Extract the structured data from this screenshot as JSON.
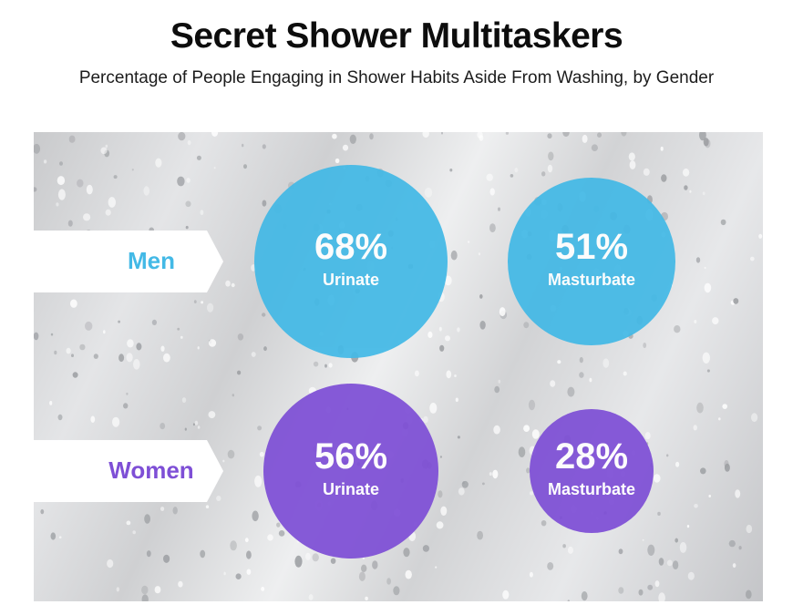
{
  "colors": {
    "men": "#43b9e6",
    "women": "#7e4fd6",
    "tab": "#ffffff"
  },
  "chart_data": {
    "type": "bubble",
    "title": "Secret Shower Multitaskers",
    "subtitle": "Percentage of People Engaging in Shower Habits Aside From Washing, by Gender",
    "unit": "%",
    "categories": [
      "Urinate",
      "Masturbate"
    ],
    "series": [
      {
        "name": "Men",
        "values": [
          68,
          51
        ],
        "labels": [
          "68%",
          "51%"
        ]
      },
      {
        "name": "Women",
        "values": [
          56,
          28
        ],
        "labels": [
          "56%",
          "28%"
        ]
      }
    ]
  }
}
